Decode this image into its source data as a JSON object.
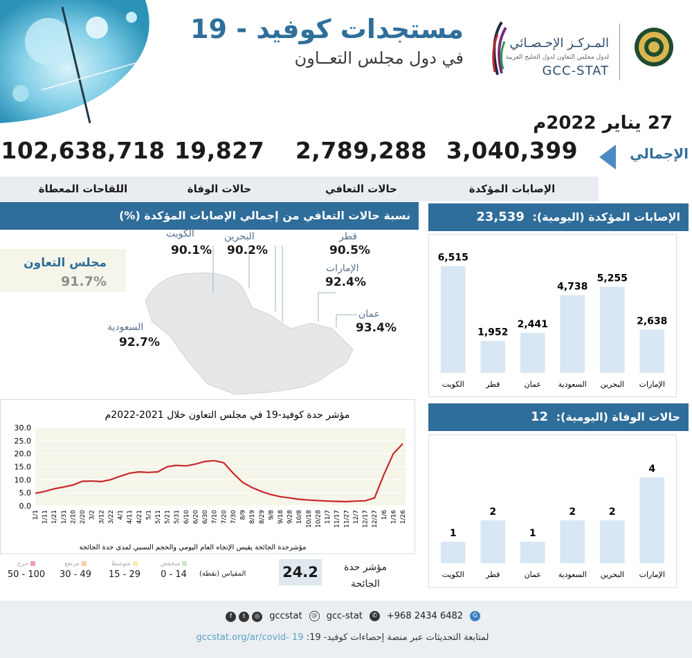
{
  "header": {
    "title": "مستجدات كوفيد - 19",
    "subtitle": "في دول مجلس التعــاون",
    "org_ar": "المـركـز الإحـصـائي",
    "org_ar_sub": "لدول مجلس التعاون لدول الخليج العربية",
    "org_en": "GCC-STAT"
  },
  "date": "27 يناير 2022م",
  "totals": {
    "label": "الإجمالي",
    "items": [
      {
        "value": "3,040,399",
        "label": "الإصابات المؤكدة"
      },
      {
        "value": "2,789,288",
        "label": "حالات التعافي"
      },
      {
        "value": "19,827",
        "label": "حالات الوفاة"
      },
      {
        "value": "102,638,718",
        "label": "اللقاحات المعطاة"
      }
    ]
  },
  "recovery": {
    "title": "نسبة حالات التعافي من إجمالي الإصابات المؤكدة (%)",
    "gcc_name": "مجلس التعاون",
    "gcc_pct": "91.7%",
    "countries": [
      {
        "name": "الكويت",
        "pct": "90.1%"
      },
      {
        "name": "البحرين",
        "pct": "90.2%"
      },
      {
        "name": "قطر",
        "pct": "90.5%"
      },
      {
        "name": "الإمارات",
        "pct": "92.4%"
      },
      {
        "name": "عمان",
        "pct": "93.4%"
      },
      {
        "name": "السعودية",
        "pct": "92.7%"
      }
    ]
  },
  "confirmed_daily": {
    "title": "الإصابات المؤكدة (اليومية):",
    "total": "23,539"
  },
  "deaths_daily": {
    "title": "حالات الوفاة (اليومية):",
    "total": "12"
  },
  "severity": {
    "title": "مؤشر حدة كوفيد-19 في مجلس التعاون خلال 2021-2022م",
    "note": "مؤشرحدة الجائحة يقيس الإتجاه العام اليومي والحجم النسبي لمدى حدة الجائحة",
    "index_label": "مؤشر حدة الجائحة",
    "index_value": "24.2",
    "scale_label": "المقياس (نقطة)",
    "scale": [
      {
        "name": "منخفض",
        "range": "0 - 14",
        "color": "#cfe3c6"
      },
      {
        "name": "متوسط",
        "range": "15 - 29",
        "color": "#f3ecb4"
      },
      {
        "name": "مرتفع",
        "range": "30 - 49",
        "color": "#f6cfa6"
      },
      {
        "name": "حرج",
        "range": "50 - 100",
        "color": "#f19dbb"
      }
    ]
  },
  "footer": {
    "phone": "+968 2434 6482",
    "handle1": "gcc-stat",
    "handle2": "gccstat",
    "follow_text": "لمتابعة التحديثات عبر منصة إحصاءات كوفيد- 19:",
    "url": "gccstat.org/ar/covid- 19"
  },
  "colors": {
    "accent": "#2f6d9a",
    "bar": "#d8e7f3",
    "plot_bg": "#f6f5e9",
    "line": "#c9272b"
  },
  "chart_data": [
    {
      "type": "bar",
      "title": "الإصابات المؤكدة (اليومية): 23,539",
      "categories": [
        "الكويت",
        "قطر",
        "عمان",
        "السعودية",
        "البحرين",
        "الإمارات"
      ],
      "values": [
        6515,
        1952,
        2441,
        4738,
        5255,
        2638
      ],
      "labels": [
        "6,515",
        "1,952",
        "2,441",
        "4,738",
        "5,255",
        "2,638"
      ],
      "ylim": [
        0,
        7000
      ]
    },
    {
      "type": "bar",
      "title": "حالات الوفاة (اليومية): 12",
      "categories": [
        "الكويت",
        "قطر",
        "عمان",
        "السعودية",
        "البحرين",
        "الإمارات"
      ],
      "values": [
        1,
        2,
        1,
        2,
        2,
        4
      ],
      "labels": [
        "1",
        "2",
        "1",
        "2",
        "2",
        "4"
      ],
      "ylim": [
        0,
        5
      ]
    },
    {
      "type": "line",
      "title": "مؤشر حدة كوفيد-19 في مجلس التعاون خلال 2021-2022م",
      "ylim": [
        0,
        30
      ],
      "yticks": [
        "0.0",
        "5.0",
        "10.0",
        "15.0",
        "20.0",
        "25.0",
        "30.0"
      ],
      "xticks": [
        "1/1",
        "1/11",
        "1/21",
        "1/31",
        "2/10",
        "2/20",
        "3/2",
        "3/12",
        "3/22",
        "4/1",
        "4/11",
        "4/21",
        "5/1",
        "5/11",
        "5/21",
        "5/31",
        "6/10",
        "6/20",
        "6/30",
        "7/10",
        "7/20",
        "7/30",
        "8/9",
        "8/19",
        "8/29",
        "9/8",
        "9/18",
        "9/28",
        "10/8",
        "10/18",
        "10/28",
        "11/7",
        "11/17",
        "11/27",
        "12/7",
        "12/17",
        "12/27",
        "1/6",
        "1/16",
        "1/26"
      ],
      "values": [
        4.8,
        5.5,
        6.5,
        7.2,
        8.0,
        9.4,
        9.5,
        9.3,
        10.0,
        11.3,
        12.5,
        13.0,
        12.8,
        13.0,
        15.0,
        15.5,
        15.3,
        16.0,
        17.0,
        17.3,
        16.5,
        12.5,
        9.0,
        7.0,
        5.5,
        4.3,
        3.5,
        3.0,
        2.5,
        2.2,
        2.0,
        1.8,
        1.7,
        1.6,
        1.8,
        1.9,
        3.0,
        12.0,
        20.0,
        23.8
      ]
    }
  ]
}
